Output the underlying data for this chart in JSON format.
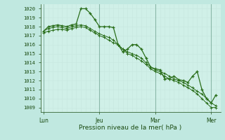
{
  "background_color": "#c0e8e0",
  "plot_bg_color": "#d0f0e8",
  "grid_color_major": "#b0d8d0",
  "grid_color_minor": "#c8e8e0",
  "line_color": "#2a6e1a",
  "vline_color": "#8ab8a8",
  "ylabel_values": [
    1009,
    1010,
    1011,
    1012,
    1013,
    1014,
    1015,
    1016,
    1017,
    1018,
    1019,
    1020
  ],
  "ylim": [
    1008.5,
    1020.5
  ],
  "xlabel": "Pression niveau de la mer( hPa )",
  "xtick_labels": [
    "Lun",
    "Jeu",
    "Mar",
    "Mer"
  ],
  "xtick_positions": [
    0,
    36,
    72,
    108
  ],
  "vline_positions": [
    0,
    36,
    72,
    108
  ],
  "n_points": 114,
  "series1_x": [
    0,
    3,
    6,
    9,
    12,
    15,
    18,
    21,
    24,
    27,
    30,
    33,
    36,
    39,
    42,
    45,
    48,
    51,
    54,
    57,
    60,
    63,
    66,
    69,
    72,
    75,
    78,
    81,
    84,
    87,
    90,
    93,
    96,
    99,
    102,
    105,
    108,
    111
  ],
  "series1_y": [
    1017.5,
    1018.0,
    1018.1,
    1018.2,
    1018.1,
    1018.0,
    1018.2,
    1018.3,
    1020.0,
    1020.0,
    1019.5,
    1018.8,
    1018.0,
    1018.0,
    1018.0,
    1017.9,
    1016.0,
    1015.2,
    1015.5,
    1016.0,
    1016.0,
    1015.5,
    1014.5,
    1013.5,
    1013.3,
    1013.2,
    1012.2,
    1012.2,
    1012.5,
    1012.1,
    1012.0,
    1011.8,
    1012.5,
    1013.0,
    1011.0,
    1010.0,
    1009.5,
    1010.4
  ],
  "series2_x": [
    0,
    3,
    6,
    9,
    12,
    15,
    18,
    21,
    24,
    27,
    30,
    33,
    36,
    39,
    42,
    45,
    48,
    51,
    54,
    57,
    60,
    63,
    66,
    69,
    72,
    75,
    78,
    81,
    84,
    87,
    90,
    93,
    96,
    99,
    102,
    105,
    108,
    111
  ],
  "series2_y": [
    1017.5,
    1017.8,
    1017.9,
    1018.0,
    1017.9,
    1017.8,
    1018.0,
    1018.1,
    1018.2,
    1018.1,
    1017.8,
    1017.5,
    1017.2,
    1017.0,
    1016.8,
    1016.5,
    1016.0,
    1015.5,
    1015.2,
    1015.0,
    1014.8,
    1014.5,
    1014.0,
    1013.5,
    1013.2,
    1013.0,
    1012.8,
    1012.5,
    1012.2,
    1012.0,
    1011.8,
    1011.5,
    1011.2,
    1010.8,
    1010.5,
    1010.0,
    1009.5,
    1009.2
  ],
  "series3_x": [
    0,
    3,
    6,
    9,
    12,
    15,
    18,
    21,
    24,
    27,
    30,
    33,
    36,
    39,
    42,
    45,
    48,
    51,
    54,
    57,
    60,
    63,
    66,
    69,
    72,
    75,
    78,
    81,
    84,
    87,
    90,
    93,
    96,
    99,
    102,
    105,
    108,
    111
  ],
  "series3_y": [
    1017.3,
    1017.5,
    1017.6,
    1017.7,
    1017.7,
    1017.6,
    1017.8,
    1017.9,
    1018.0,
    1017.9,
    1017.6,
    1017.3,
    1017.0,
    1016.8,
    1016.5,
    1016.2,
    1016.0,
    1015.5,
    1015.0,
    1014.8,
    1014.5,
    1014.2,
    1013.8,
    1013.3,
    1013.0,
    1012.8,
    1012.5,
    1012.2,
    1012.0,
    1011.8,
    1011.5,
    1011.2,
    1010.9,
    1010.5,
    1010.0,
    1009.5,
    1009.0,
    1009.0
  ]
}
